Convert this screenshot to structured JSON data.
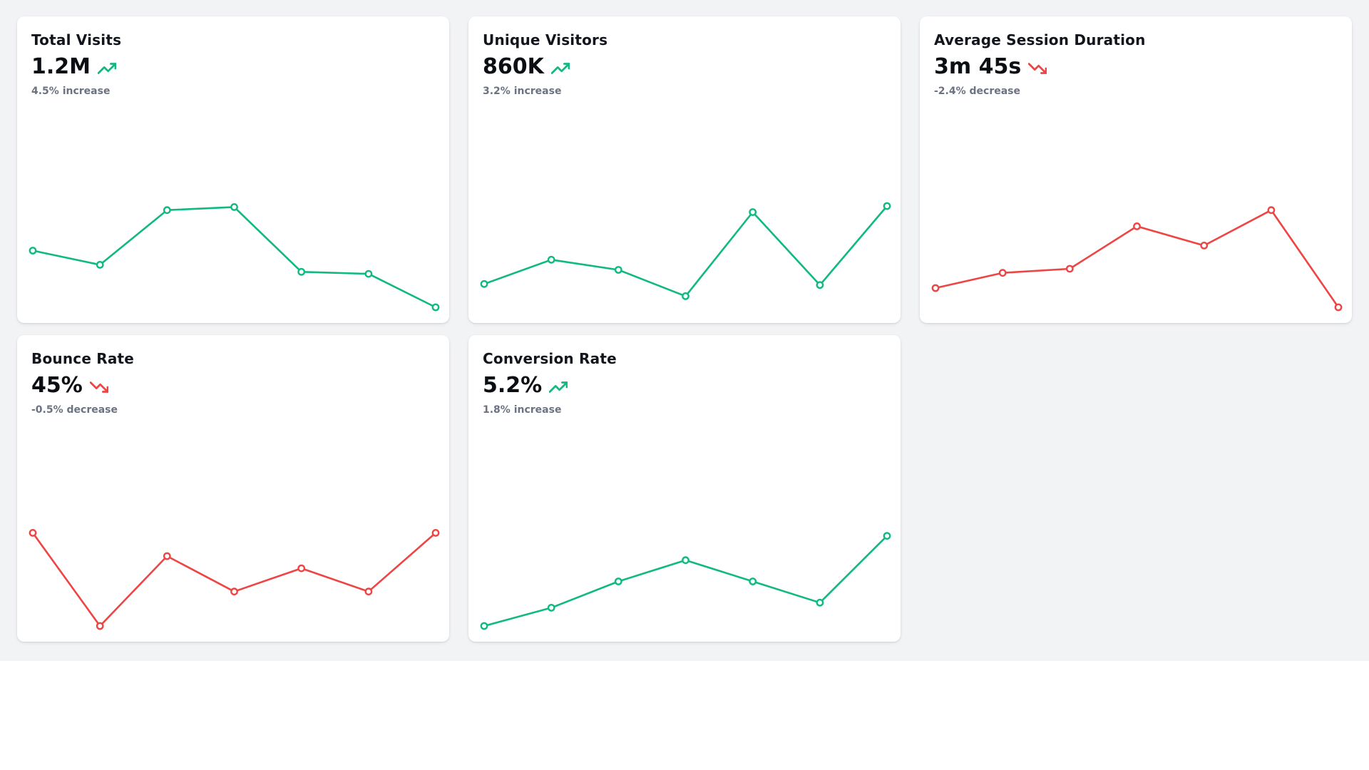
{
  "page": {
    "background_color": "#f2f3f5",
    "card_background": "#ffffff",
    "title_text_color": "#12161c",
    "muted_text_color": "#6b7280",
    "positive_color": "#10b981",
    "negative_color": "#ef4444"
  },
  "cards": [
    {
      "title": "Total Visits",
      "value": "1.2M",
      "trend": "up",
      "trend_icon": "trending-up-icon",
      "change_label": "4.5% increase"
    },
    {
      "title": "Unique Visitors",
      "value": "860K",
      "trend": "up",
      "trend_icon": "trending-up-icon",
      "change_label": "3.2% increase"
    },
    {
      "title": "Average Session Duration",
      "value": "3m 45s",
      "trend": "down",
      "trend_icon": "trending-down-icon",
      "change_label": "-2.4% decrease"
    },
    {
      "title": "Bounce Rate",
      "value": "45%",
      "trend": "down",
      "trend_icon": "trending-down-icon",
      "change_label": "-0.5% decrease"
    },
    {
      "title": "Conversion Rate",
      "value": "5.2%",
      "trend": "up",
      "trend_icon": "trending-up-icon",
      "change_label": "1.8% increase"
    }
  ],
  "chart_data": [
    {
      "type": "line",
      "title": "Total Visits sparkline",
      "x": [
        1,
        2,
        3,
        4,
        5,
        6,
        7
      ],
      "series": [
        {
          "name": "Total Visits",
          "values": [
            56,
            42,
            96,
            99,
            35,
            33,
            0
          ]
        }
      ],
      "ylim": [
        0,
        100
      ],
      "yunit": "relative scale 0-100 (estimated from pixels, no axis labels shown)",
      "color": "#10b981",
      "markers": true,
      "grid": false,
      "legend": false,
      "axes_hidden": true
    },
    {
      "type": "line",
      "title": "Unique Visitors sparkline",
      "x": [
        1,
        2,
        3,
        4,
        5,
        6,
        7
      ],
      "series": [
        {
          "name": "Unique Visitors",
          "values": [
            23,
            47,
            37,
            11,
            94,
            22,
            100
          ]
        }
      ],
      "ylim": [
        0,
        100
      ],
      "yunit": "relative scale 0-100 (estimated from pixels, no axis labels shown)",
      "color": "#10b981",
      "markers": true,
      "grid": false,
      "legend": false,
      "axes_hidden": true
    },
    {
      "type": "line",
      "title": "Average Session Duration sparkline",
      "x": [
        1,
        2,
        3,
        4,
        5,
        6,
        7
      ],
      "series": [
        {
          "name": "Average Session Duration",
          "values": [
            19,
            34,
            38,
            80,
            61,
            96,
            0
          ]
        }
      ],
      "ylim": [
        0,
        100
      ],
      "yunit": "relative scale 0-100 (estimated from pixels, no axis labels shown)",
      "color": "#ef4444",
      "markers": true,
      "grid": false,
      "legend": false,
      "axes_hidden": true
    },
    {
      "type": "line",
      "title": "Bounce Rate sparkline",
      "x": [
        1,
        2,
        3,
        4,
        5,
        6,
        7
      ],
      "series": [
        {
          "name": "Bounce Rate",
          "values": [
            92,
            0,
            69,
            34,
            57,
            34,
            92
          ]
        }
      ],
      "ylim": [
        0,
        100
      ],
      "yunit": "relative scale 0-100 (estimated from pixels, no axis labels shown)",
      "color": "#ef4444",
      "markers": true,
      "grid": false,
      "legend": false,
      "axes_hidden": true
    },
    {
      "type": "line",
      "title": "Conversion Rate sparkline",
      "x": [
        1,
        2,
        3,
        4,
        5,
        6,
        7
      ],
      "series": [
        {
          "name": "Conversion Rate",
          "values": [
            0,
            18,
            44,
            65,
            44,
            23,
            89
          ]
        }
      ],
      "ylim": [
        0,
        100
      ],
      "yunit": "relative scale 0-100 (estimated from pixels, no axis labels shown)",
      "color": "#10b981",
      "markers": true,
      "grid": false,
      "legend": false,
      "axes_hidden": true
    }
  ]
}
